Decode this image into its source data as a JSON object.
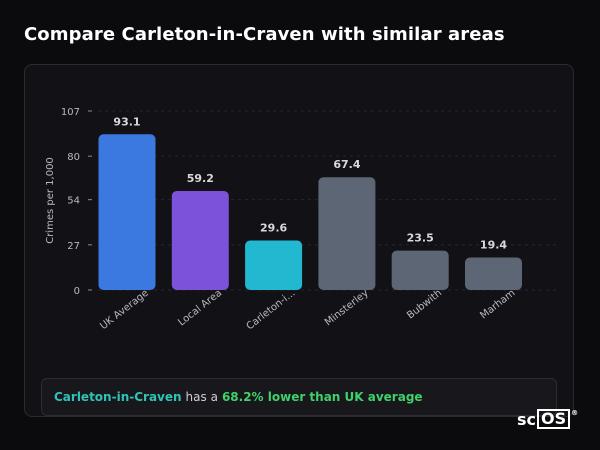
{
  "header": {
    "title": "Compare Carleton-in-Craven with similar areas"
  },
  "chart_data": {
    "type": "bar",
    "ylabel": "Crimes per 1,000",
    "xlabel": "",
    "ylim": [
      0,
      107
    ],
    "yticks": [
      0,
      27,
      54,
      80,
      107
    ],
    "grid": true,
    "categories": [
      "UK Average",
      "Local Area",
      "Carleton-i...",
      "Minsterley",
      "Bubwith",
      "Marham"
    ],
    "values": [
      93.1,
      59.2,
      29.6,
      67.4,
      23.5,
      19.4
    ],
    "value_labels": [
      "93.1",
      "59.2",
      "29.6",
      "67.4",
      "23.5",
      "19.4"
    ],
    "colors": [
      "#3b79e0",
      "#7b52d9",
      "#22b8d0",
      "#5c6675",
      "#5c6675",
      "#5c6675"
    ]
  },
  "summary": {
    "place": "Carleton-in-Craven",
    "middle": "has a",
    "stat": "68.2% lower than UK average"
  },
  "logo": {
    "prefix": "sc",
    "boxed": "OS",
    "mark": "®"
  }
}
